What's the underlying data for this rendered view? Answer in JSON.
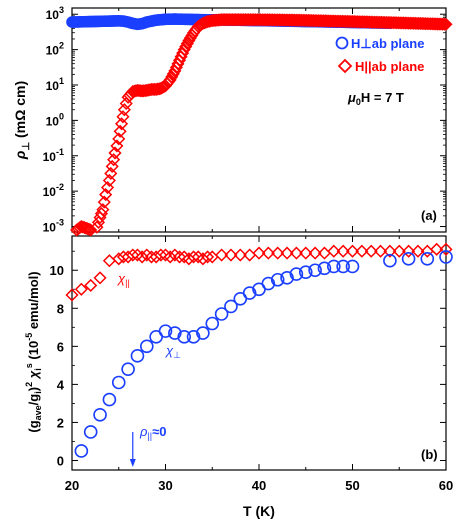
{
  "chart_data": [
    {
      "panel_label": "(a)",
      "type": "scatter",
      "x_range": [
        20,
        60
      ],
      "y_scale": "log",
      "ylim": [
        0.0007,
        1500
      ],
      "ylabel_text": "ρ⊥ (mΩ cm)",
      "yticks": [
        "10^3",
        "10^2",
        "10^1",
        "10^0",
        "10^-1",
        "10^-2",
        "10^-3"
      ],
      "legend": {
        "placement": "top-right",
        "entries": [
          {
            "marker": "circle",
            "color": "#1a3fff",
            "label": "H⊥ab plane"
          },
          {
            "marker": "diamond",
            "color": "#ff0000",
            "label": "H||ab plane"
          }
        ],
        "field_note": "μ0H = 7 T"
      },
      "series": [
        {
          "name": "H⊥ab plane",
          "color": "#1a3fff",
          "x": [
            20,
            21,
            22,
            23,
            24,
            25,
            25.5,
            26,
            26.5,
            27,
            27.5,
            28,
            29,
            30,
            31,
            32,
            34,
            36,
            40,
            44,
            48,
            50,
            52,
            54
          ],
          "y": [
            600,
            610,
            620,
            630,
            640,
            650,
            640,
            600,
            550,
            520,
            540,
            600,
            680,
            720,
            730,
            720,
            700,
            690,
            660,
            630,
            600,
            585,
            570,
            560
          ]
        },
        {
          "name": "H||ab plane",
          "color": "#ff0000",
          "x": [
            20.5,
            21,
            21.5,
            22,
            22.5,
            23,
            23.3,
            23.6,
            24,
            24.3,
            24.6,
            25,
            25.3,
            25.6,
            26,
            26.5,
            27,
            27.5,
            28,
            28.5,
            29,
            29.5,
            30,
            30.5,
            31,
            31.5,
            32,
            32.5,
            33,
            33.5,
            34,
            34.5,
            35,
            36,
            37,
            38,
            40,
            42,
            44,
            46,
            48,
            50,
            52,
            54,
            56,
            58,
            60
          ],
          "y": [
            0.0008,
            0.001,
            0.0009,
            0.0008,
            0.0007,
            0.0018,
            0.003,
            0.008,
            0.02,
            0.05,
            0.12,
            0.3,
            0.8,
            2.0,
            4.5,
            6.5,
            7.0,
            6.8,
            7.0,
            7.5,
            7.5,
            8.0,
            9.5,
            14,
            25,
            50,
            100,
            180,
            300,
            450,
            550,
            620,
            660,
            700,
            700,
            700,
            700,
            690,
            680,
            660,
            640,
            620,
            600,
            580,
            560,
            540,
            520
          ]
        }
      ]
    },
    {
      "panel_label": "(b)",
      "type": "scatter",
      "xlabel": "T (K)",
      "ylabel_text": "(gave/gi)2 χis (10-5 emu/mol)",
      "xlim": [
        20,
        60
      ],
      "ylim": [
        -0.5,
        11.8
      ],
      "xticks": [
        20,
        30,
        40,
        50,
        60
      ],
      "yticks": [
        0,
        2,
        4,
        6,
        8,
        10
      ],
      "annotations": [
        "χ||",
        "χ⊥",
        "ρ||≈0"
      ],
      "series": [
        {
          "name": "χ||",
          "color": "#ff0000",
          "marker": "diamond",
          "x": [
            20,
            21,
            22,
            23,
            24,
            25,
            25.5,
            26,
            26.5,
            27,
            27.5,
            28,
            28.5,
            29,
            29.5,
            30,
            30.5,
            31,
            31.5,
            32,
            32.5,
            33,
            33.5,
            34,
            34.5,
            35,
            36,
            37,
            38,
            39,
            40,
            41,
            42,
            43,
            44,
            45,
            46,
            47,
            48,
            49,
            50,
            51,
            52,
            53,
            54,
            55,
            56,
            57,
            58,
            59,
            60
          ],
          "y": [
            8.7,
            9.0,
            9.2,
            9.6,
            10.5,
            10.6,
            10.7,
            10.7,
            10.8,
            10.8,
            10.7,
            10.8,
            10.7,
            10.7,
            10.8,
            10.8,
            10.7,
            10.8,
            10.7,
            10.7,
            10.6,
            10.7,
            10.7,
            10.6,
            10.7,
            10.7,
            10.8,
            10.8,
            10.8,
            10.8,
            10.9,
            10.9,
            10.9,
            10.9,
            10.9,
            10.9,
            10.9,
            10.9,
            11.0,
            11.0,
            11.0,
            11.0,
            11.0,
            11.0,
            11.0,
            11.0,
            11.0,
            11.0,
            11.0,
            11.1,
            11.1
          ]
        },
        {
          "name": "χ⊥",
          "color": "#1a3fff",
          "marker": "circle",
          "x": [
            21,
            22,
            23,
            24,
            25,
            26,
            27,
            28,
            29,
            30,
            31,
            32,
            33,
            34,
            35,
            36,
            37,
            38,
            39,
            40,
            41,
            42,
            43,
            44,
            45,
            46,
            47,
            48,
            49,
            50,
            54,
            56,
            58,
            60
          ],
          "y": [
            0.5,
            1.5,
            2.4,
            3.2,
            4.1,
            4.8,
            5.5,
            6.0,
            6.5,
            6.8,
            6.7,
            6.5,
            6.5,
            6.7,
            7.2,
            7.7,
            8.1,
            8.5,
            8.8,
            9.0,
            9.3,
            9.5,
            9.6,
            9.8,
            9.9,
            10.0,
            10.1,
            10.2,
            10.2,
            10.2,
            10.5,
            10.6,
            10.6,
            10.7
          ]
        }
      ],
      "arrow": {
        "x": 26.5,
        "label": "ρ||≈0",
        "color": "#1a3fff"
      }
    }
  ]
}
